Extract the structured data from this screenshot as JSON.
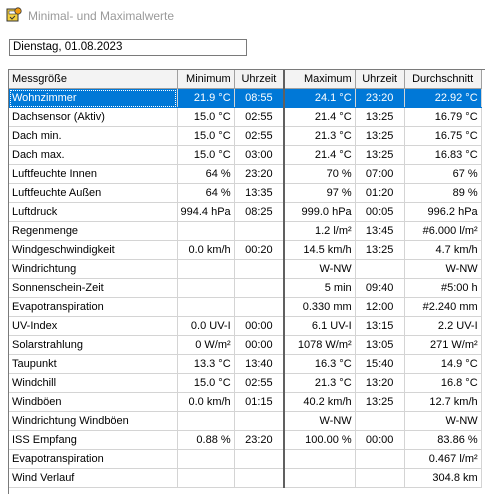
{
  "window": {
    "title": "Minimal- und Maximalwerte",
    "icon": "weather-station-icon"
  },
  "date": {
    "value": "Dienstag, 01.08.2023"
  },
  "columns": {
    "name": "Messgröße",
    "min": "Minimum",
    "min_time": "Uhrzeit",
    "max": "Maximum",
    "max_time": "Uhrzeit",
    "avg": "Durchschnitt"
  },
  "rows": [
    {
      "name": "Wohnzimmer",
      "min": "21.9 °C",
      "min_time": "08:55",
      "max": "24.1 °C",
      "max_time": "23:20",
      "avg": "22.92 °C",
      "selected": true
    },
    {
      "name": "Dachsensor (Aktiv)",
      "min": "15.0 °C",
      "min_time": "02:55",
      "max": "21.4 °C",
      "max_time": "13:25",
      "avg": "16.79 °C"
    },
    {
      "name": "Dach min.",
      "min": "15.0 °C",
      "min_time": "02:55",
      "max": "21.3 °C",
      "max_time": "13:25",
      "avg": "16.75 °C"
    },
    {
      "name": "Dach max.",
      "min": "15.0 °C",
      "min_time": "03:00",
      "max": "21.4 °C",
      "max_time": "13:25",
      "avg": "16.83 °C"
    },
    {
      "name": "Luftfeuchte Innen",
      "min": "64 %",
      "min_time": "23:20",
      "max": "70 %",
      "max_time": "07:00",
      "avg": "67 %"
    },
    {
      "name": "Luftfeuchte Außen",
      "min": "64 %",
      "min_time": "13:35",
      "max": "97 %",
      "max_time": "01:20",
      "avg": "89 %"
    },
    {
      "name": "Luftdruck",
      "min": "994.4 hPa",
      "min_time": "08:25",
      "max": "999.0 hPa",
      "max_time": "00:05",
      "avg": "996.2 hPa"
    },
    {
      "name": "Regenmenge",
      "min": "",
      "min_time": "",
      "max": "1.2 l/m²",
      "max_time": "13:45",
      "avg": "#6.000 l/m²"
    },
    {
      "name": "Windgeschwindigkeit",
      "min": "0.0 km/h",
      "min_time": "00:20",
      "max": "14.5 km/h",
      "max_time": "13:25",
      "avg": "4.7 km/h"
    },
    {
      "name": "Windrichtung",
      "min": "",
      "min_time": "",
      "max": "W-NW",
      "max_time": "",
      "avg": "W-NW"
    },
    {
      "name": "Sonnenschein-Zeit",
      "min": "",
      "min_time": "",
      "max": "5 min",
      "max_time": "09:40",
      "avg": "#5:00 h"
    },
    {
      "name": "Evapotranspiration",
      "min": "",
      "min_time": "",
      "max": "0.330 mm",
      "max_time": "12:00",
      "avg": "#2.240 mm"
    },
    {
      "name": "UV-Index",
      "min": "0.0 UV-I",
      "min_time": "00:00",
      "max": "6.1 UV-I",
      "max_time": "13:15",
      "avg": "2.2 UV-I"
    },
    {
      "name": "Solarstrahlung",
      "min": "0 W/m²",
      "min_time": "00:00",
      "max": "1078 W/m²",
      "max_time": "13:05",
      "avg": "271 W/m²"
    },
    {
      "name": "Taupunkt",
      "min": "13.3 °C",
      "min_time": "13:40",
      "max": "16.3 °C",
      "max_time": "15:40",
      "avg": "14.9 °C"
    },
    {
      "name": "Windchill",
      "min": "15.0 °C",
      "min_time": "02:55",
      "max": "21.3 °C",
      "max_time": "13:20",
      "avg": "16.8 °C"
    },
    {
      "name": "Windböen",
      "min": "0.0 km/h",
      "min_time": "01:15",
      "max": "40.2 km/h",
      "max_time": "13:25",
      "avg": "12.7 km/h"
    },
    {
      "name": "Windrichtung Windböen",
      "min": "",
      "min_time": "",
      "max": "W-NW",
      "max_time": "",
      "avg": "W-NW"
    },
    {
      "name": "ISS Empfang",
      "min": "0.88 %",
      "min_time": "23:20",
      "max": "100.00 %",
      "max_time": "00:00",
      "avg": "83.86 %"
    },
    {
      "name": "Evapotranspiration",
      "min": "",
      "min_time": "",
      "max": "",
      "max_time": "",
      "avg": "0.467 l/m²"
    },
    {
      "name": "Wind Verlauf",
      "min": "",
      "min_time": "",
      "max": "",
      "max_time": "",
      "avg": "304.8 km"
    }
  ],
  "colors": {
    "selection": "#0078d7",
    "title_text": "#9a9a9a"
  }
}
